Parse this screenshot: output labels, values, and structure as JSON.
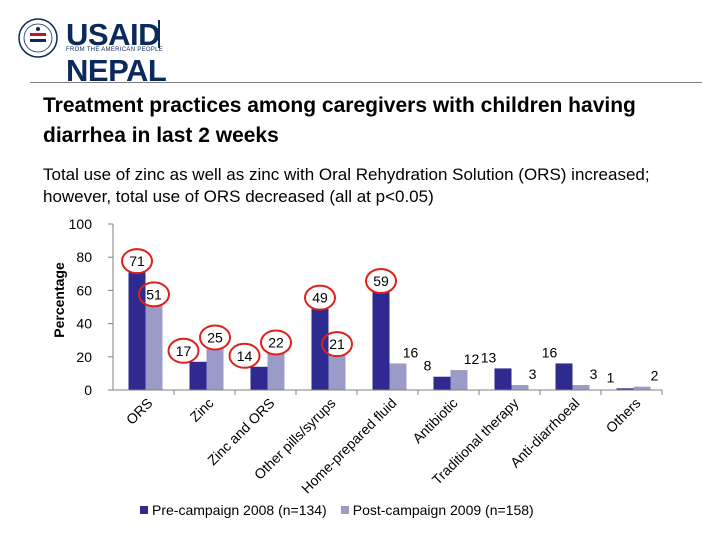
{
  "logo": {
    "brand": "USAID",
    "country": "NEPAL",
    "tagline": "FROM THE AMERICAN PEOPLE"
  },
  "slide": {
    "title": "Treatment practices among caregivers with children having diarrhea in last 2 weeks",
    "subtitle": "Total use of zinc as well as zinc with Oral Rehydration Solution (ORS) increased; however, total use of ORS decreased (all at p<0.05)"
  },
  "colors": {
    "pre": "#2e2a8f",
    "post": "#9b9bc8",
    "highlight": "#e0201b",
    "axis": "#808080",
    "logo": "#0b2a5c"
  },
  "chart_data": {
    "type": "bar",
    "ylabel": "Percentage",
    "xlabel": "",
    "ylim": [
      0,
      100
    ],
    "yticks": [
      0,
      20,
      40,
      60,
      80,
      100
    ],
    "categories": [
      "ORS",
      "Zinc",
      "Zinc and ORS",
      "Other pills/syrups",
      "Home-prepared fluid",
      "Antibiotic",
      "Traditional therapy",
      "Anti-diarrhoeal",
      "Others"
    ],
    "series": [
      {
        "name": "Pre-campaign 2008 (n=134)",
        "values": [
          71,
          17,
          14,
          49,
          59,
          8,
          13,
          16,
          1
        ]
      },
      {
        "name": "Post-campaign 2009 (n=158)",
        "values": [
          51,
          25,
          22,
          21,
          16,
          12,
          3,
          3,
          2
        ]
      }
    ],
    "highlighted": [
      {
        "series": 0,
        "category": 0
      },
      {
        "series": 1,
        "category": 0
      },
      {
        "series": 0,
        "category": 1
      },
      {
        "series": 1,
        "category": 1
      },
      {
        "series": 0,
        "category": 2
      },
      {
        "series": 1,
        "category": 2
      },
      {
        "series": 0,
        "category": 3
      },
      {
        "series": 1,
        "category": 3
      },
      {
        "series": 0,
        "category": 4
      }
    ],
    "legend_position": "bottom"
  }
}
